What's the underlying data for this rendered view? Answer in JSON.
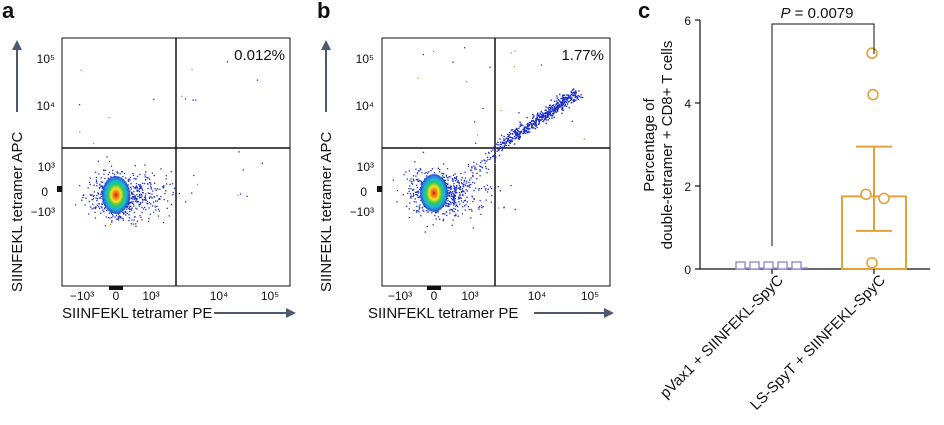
{
  "panels": {
    "a": {
      "letter": "a",
      "quadrant_percent": "0.012%",
      "x_label": "SIINFEKL tetramer PE",
      "y_label": "SIINFEKL tetramer APC",
      "x_ticks": [
        "−10³",
        "0",
        "10³",
        "10⁴",
        "10⁵"
      ],
      "y_ticks": [
        "10⁵",
        "10⁴",
        "10³",
        "0",
        "−10³"
      ]
    },
    "b": {
      "letter": "b",
      "quadrant_percent": "1.77%",
      "x_label": "SIINFEKL tetramer PE",
      "y_label": "SIINFEKL tetramer APC",
      "x_ticks": [
        "−10³",
        "0",
        "10³",
        "10⁴",
        "10⁵"
      ],
      "y_ticks": [
        "10⁵",
        "10⁴",
        "10³",
        "0",
        "−10³"
      ]
    },
    "c": {
      "letter": "c",
      "p_value_label": "P",
      "p_value_text": " = 0.0079",
      "y_label_line1": "Percentage of",
      "y_label_line2": "double-tetramer + CD8+ T cells",
      "y_ticks": [
        "0",
        "2",
        "4",
        "6"
      ]
    }
  },
  "colors": {
    "group1": "#8f90d0",
    "group2": "#e2a33a",
    "gate": "#111111",
    "arrow": "#4b5a6e"
  },
  "chart_data": [
    {
      "type": "scatter",
      "subtype": "flow-cytometry-density",
      "xlabel": "SIINFEKL tetramer PE",
      "ylabel": "SIINFEKL tetramer APC",
      "x_ticks": [
        "−10³",
        "0",
        "10³",
        "10⁴",
        "10⁵"
      ],
      "y_ticks": [
        "−10³",
        "0",
        "10³",
        "10⁴",
        "10⁵"
      ],
      "scale": "biexponential",
      "annotation": "0.012%",
      "annotation_position": "top-right quadrant"
    },
    {
      "type": "scatter",
      "subtype": "flow-cytometry-density",
      "xlabel": "SIINFEKL tetramer PE",
      "ylabel": "SIINFEKL tetramer APC",
      "x_ticks": [
        "−10³",
        "0",
        "10³",
        "10⁴",
        "10⁵"
      ],
      "y_ticks": [
        "−10³",
        "0",
        "10³",
        "10⁴",
        "10⁵"
      ],
      "scale": "biexponential",
      "annotation": "1.77%",
      "annotation_position": "top-right quadrant"
    },
    {
      "type": "bar",
      "categories": [
        "pVax1 + SIINFEKL-SpyC",
        "LS-SpyT + SIINFEKL-SpyC"
      ],
      "series": [
        {
          "values": [
            0.02,
            1.75
          ],
          "error": [
            0.01,
            2.95
          ],
          "error_low": [
            0.0,
            0.92
          ]
        }
      ],
      "points": [
        [
          0.0,
          0.0,
          0.0,
          0.0,
          0.0
        ],
        [
          5.2,
          4.2,
          1.8,
          1.7,
          0.15
        ]
      ],
      "ylabel": "Percentage of double-tetramer + CD8+ T cells",
      "ylim": [
        0,
        6
      ],
      "y_ticks": [
        0,
        2,
        4,
        6
      ],
      "significance": "P = 0.0079"
    }
  ]
}
